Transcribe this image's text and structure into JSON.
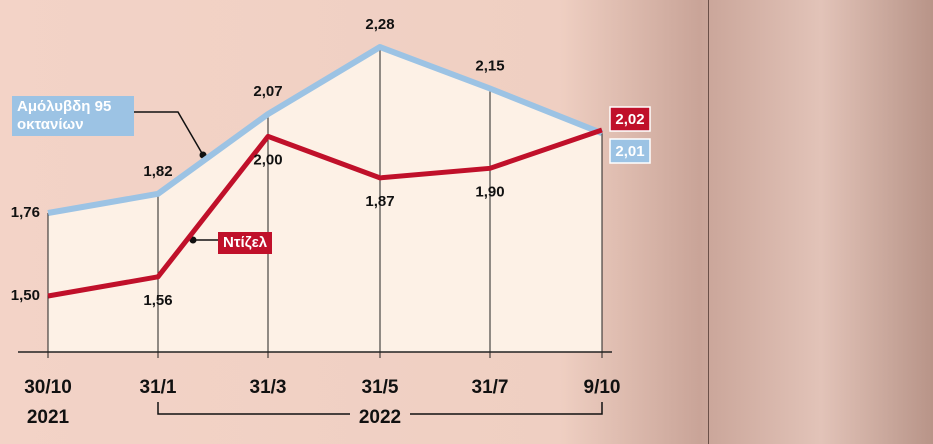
{
  "chart_data": {
    "type": "line",
    "categories": [
      "30/10",
      "31/1",
      "31/3",
      "31/5",
      "31/7",
      "9/10"
    ],
    "first_year": "2021",
    "range_label": "2022",
    "series": [
      {
        "name": "Αμόλυβδη 95 οκτανίων",
        "color": "#9cc3e4",
        "values": [
          1.76,
          1.82,
          2.07,
          2.28,
          2.15,
          2.01
        ],
        "value_labels": [
          "1,76",
          "1,82",
          "2,07",
          "2,28",
          "2,15",
          "2,01"
        ]
      },
      {
        "name": "Ντίζελ",
        "color": "#c0102a",
        "values": [
          1.5,
          1.56,
          2.0,
          1.87,
          1.9,
          2.02
        ],
        "value_labels": [
          "1,50",
          "1,56",
          "2,00",
          "1,87",
          "1,90",
          "2,02"
        ]
      }
    ]
  }
}
